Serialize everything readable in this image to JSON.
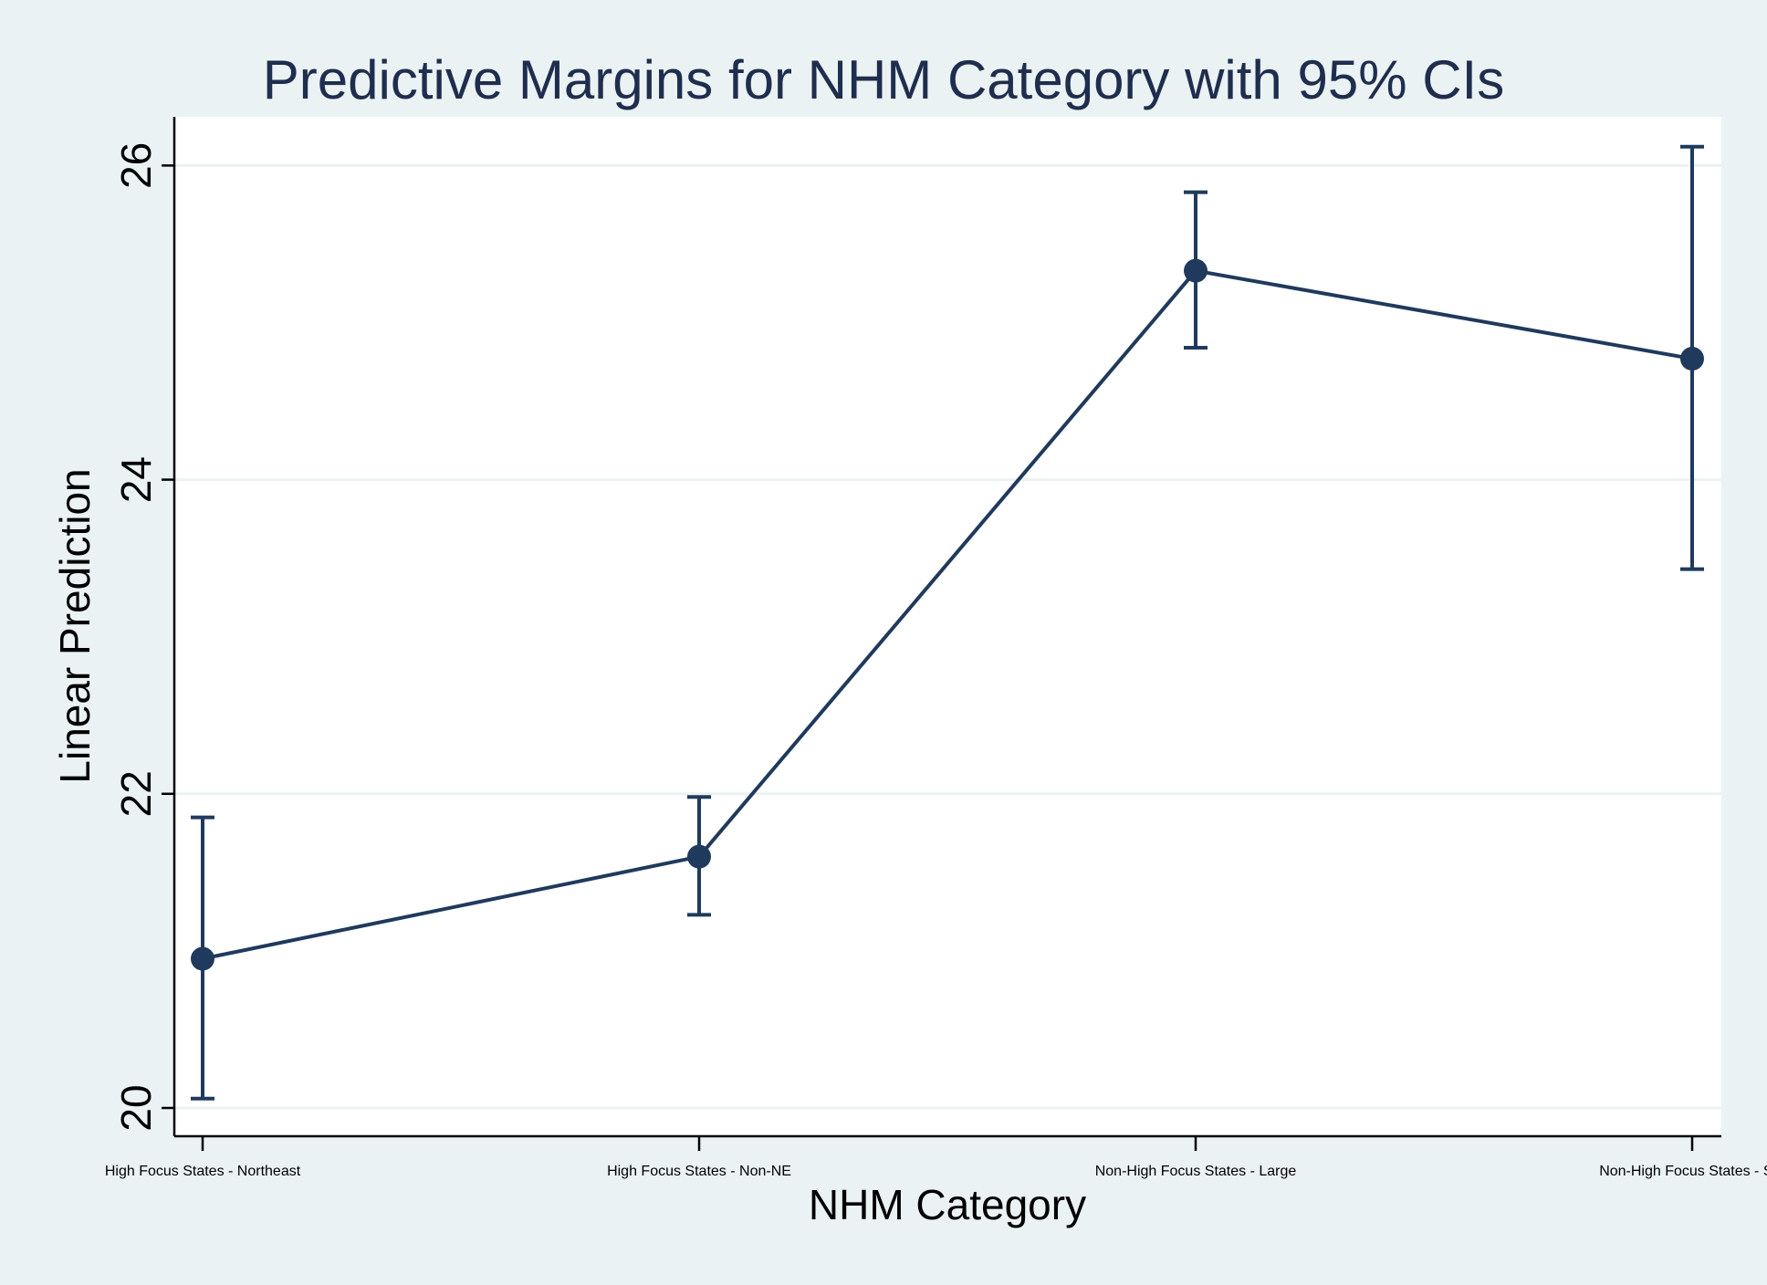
{
  "chart_data": {
    "type": "line",
    "title": "Predictive Margins for NHM Category with 95% CIs",
    "xlabel": "NHM Category",
    "ylabel": "Linear Prediction",
    "categories": [
      "High Focus States - Northeast",
      "High Focus States - Non-NE",
      "Non-High Focus States - Large",
      "Non-High Focus States - Sm"
    ],
    "series": [
      {
        "values": [
          20.95,
          21.6,
          25.33,
          24.77
        ],
        "ci_low": [
          20.06,
          21.23,
          24.84,
          23.43
        ],
        "ci_high": [
          21.85,
          21.98,
          25.83,
          26.12
        ]
      }
    ],
    "ylim": [
      19.82,
      26.31
    ],
    "yticks": [
      20,
      22,
      24,
      26
    ],
    "grid": true,
    "legend": "none",
    "colors": {
      "background": "#eaf2f3",
      "plot_area": "#ffffff",
      "series": "#1f3a5c",
      "gridline": "#eaf2f3",
      "title": "#1f2d4e"
    }
  }
}
